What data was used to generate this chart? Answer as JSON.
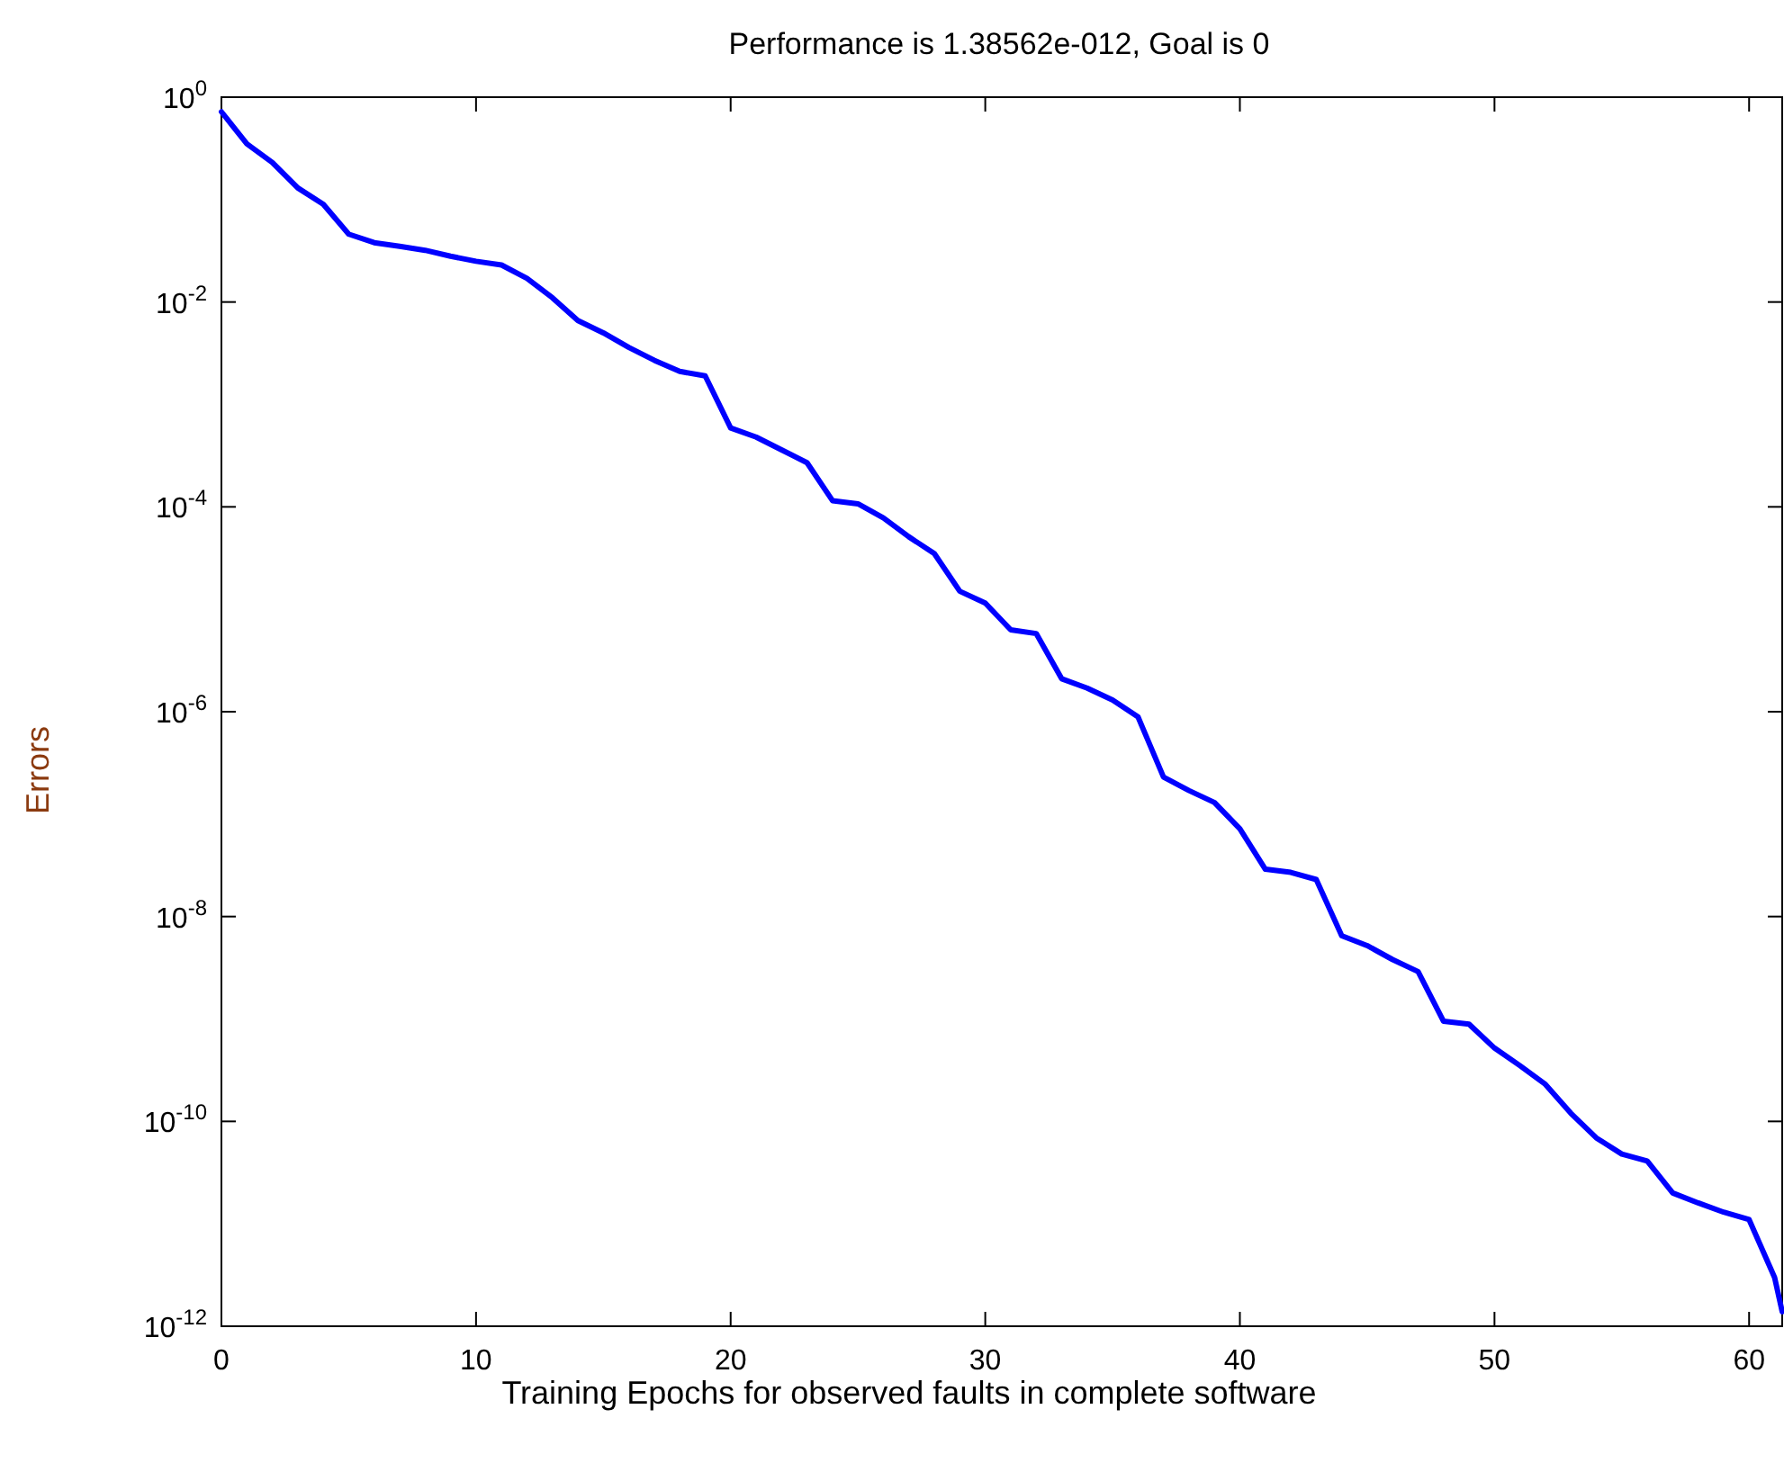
{
  "chart_data": {
    "type": "line",
    "title": "Performance is 1.38562e-012, Goal is 0",
    "xlabel": "Training Epochs for observed faults in complete software",
    "ylabel": "Errors",
    "log": "y",
    "grid": false,
    "marker": "none",
    "line_style": "solid",
    "xlim": [
      0,
      61.3
    ],
    "xticks": [
      0,
      10,
      20,
      30,
      40,
      50,
      60
    ],
    "ylim": [
      1e-12,
      1
    ],
    "yticks": [
      {
        "value": 1e-12,
        "label": "10$^{-12}$"
      },
      {
        "value": 1e-10,
        "label": "10$^{-10}$"
      },
      {
        "value": 1e-08,
        "label": "10$^{-8}$"
      },
      {
        "value": 1e-06,
        "label": "10$^{-6}$"
      },
      {
        "value": 0.0001,
        "label": "10$^{-4}$"
      },
      {
        "value": 0.01,
        "label": "10$^{-2}$"
      },
      {
        "value": 1,
        "label": "10$^{0}$"
      }
    ],
    "x": [
      0,
      1,
      2,
      3,
      4,
      5,
      6,
      7,
      8,
      9,
      10,
      11,
      12,
      13,
      14,
      15,
      16,
      17,
      18,
      19,
      20,
      21,
      22,
      23,
      24,
      25,
      26,
      27,
      28,
      29,
      30,
      31,
      32,
      33,
      34,
      35,
      36,
      37,
      38,
      39,
      40,
      41,
      42,
      43,
      44,
      45,
      46,
      47,
      48,
      49,
      50,
      51,
      52,
      53,
      54,
      55,
      56,
      57,
      58,
      59,
      60,
      61,
      61.3
    ],
    "series": [
      {
        "color": "#0000ff",
        "values": [
          0.72,
          0.35,
          0.23,
          0.13,
          0.09,
          0.046,
          0.038,
          0.035,
          0.032,
          0.028,
          0.025,
          0.023,
          0.017,
          0.011,
          0.0066,
          0.005,
          0.0036,
          0.0027,
          0.0021,
          0.0019,
          0.00059,
          0.00048,
          0.00036,
          0.00027,
          0.000115,
          0.000107,
          7.8e-05,
          5.1e-05,
          3.5e-05,
          1.5e-05,
          1.15e-05,
          6.3e-06,
          5.8e-06,
          2.1e-06,
          1.7e-06,
          1.3e-06,
          8.9e-07,
          2.3e-07,
          1.7e-07,
          1.3e-07,
          7.2e-08,
          2.9e-08,
          2.7e-08,
          2.3e-08,
          6.5e-09,
          5.2e-09,
          3.8e-09,
          2.9e-09,
          9.5e-10,
          8.9e-10,
          5.2e-10,
          3.5e-10,
          2.3e-10,
          1.2e-10,
          6.9e-11,
          4.8e-11,
          4.1e-11,
          2e-11,
          1.6e-11,
          1.3e-11,
          1.1e-11,
          3e-12,
          1.38562e-12
        ]
      }
    ]
  }
}
